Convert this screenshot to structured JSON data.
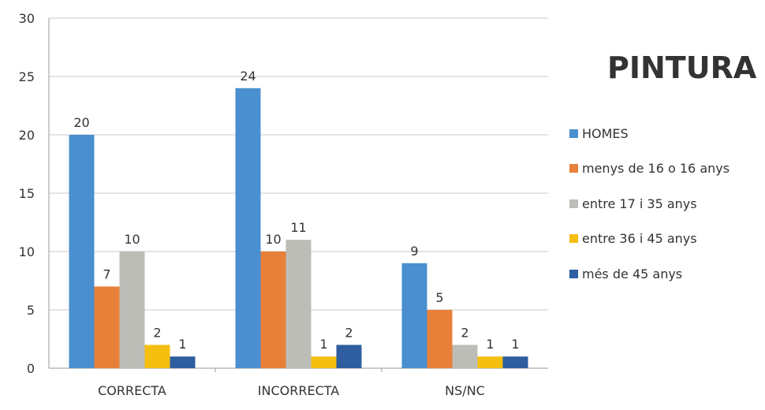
{
  "chart_data": {
    "type": "bar",
    "title": "PINTURA",
    "xlabel": "",
    "ylabel": "",
    "categories": [
      "CORRECTA",
      "INCORRECTA",
      "NS/NC"
    ],
    "ylim": [
      0,
      30
    ],
    "yticks": [
      0,
      5,
      10,
      15,
      20,
      25,
      30
    ],
    "grid": true,
    "legend_position": "right",
    "series": [
      {
        "name": "HOMES",
        "color": "#4a8fcf",
        "values": [
          20,
          24,
          9
        ]
      },
      {
        "name": "menys de 16 o 16 anys",
        "color": "#e8803a",
        "values": [
          7,
          10,
          5
        ]
      },
      {
        "name": "entre 17 i 35 anys",
        "color": "#bdbdb7",
        "values": [
          10,
          11,
          2
        ]
      },
      {
        "name": "entre 36 i 45 anys",
        "color": "#f5bf10",
        "values": [
          2,
          1,
          1
        ]
      },
      {
        "name": "més de 45 anys",
        "color": "#2e5e9f",
        "values": [
          1,
          2,
          1
        ]
      }
    ]
  }
}
